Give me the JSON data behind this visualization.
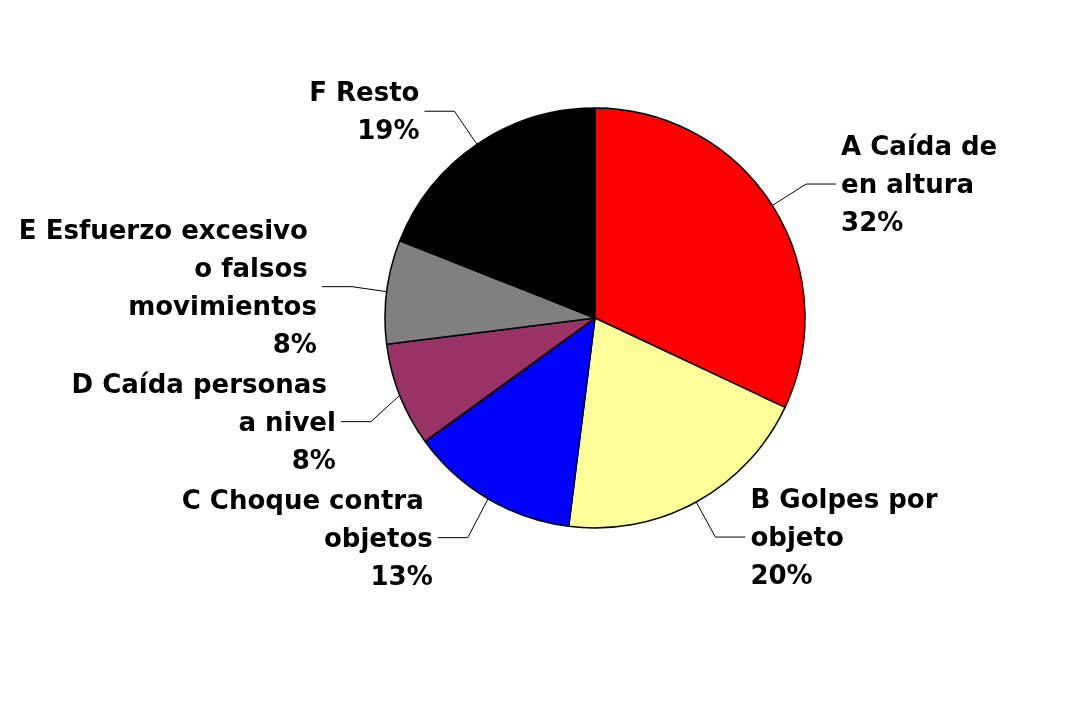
{
  "chart_data": {
    "type": "pie",
    "categories": [
      "A Caída de en altura",
      "B Golpes por objeto",
      "C Choque contra objetos",
      "D Caída personas a nivel",
      "E Esfuerzo excesivo o falsos movimientos",
      "F Resto"
    ],
    "values": [
      32,
      20,
      13,
      8,
      8,
      19
    ],
    "value_labels": [
      "32%",
      "20%",
      "13%",
      "8%",
      "8%",
      "19%"
    ],
    "colors": [
      "#ff0000",
      "#ffff99",
      "#0000ff",
      "#993366",
      "#808080",
      "#000000"
    ],
    "legend": false
  }
}
